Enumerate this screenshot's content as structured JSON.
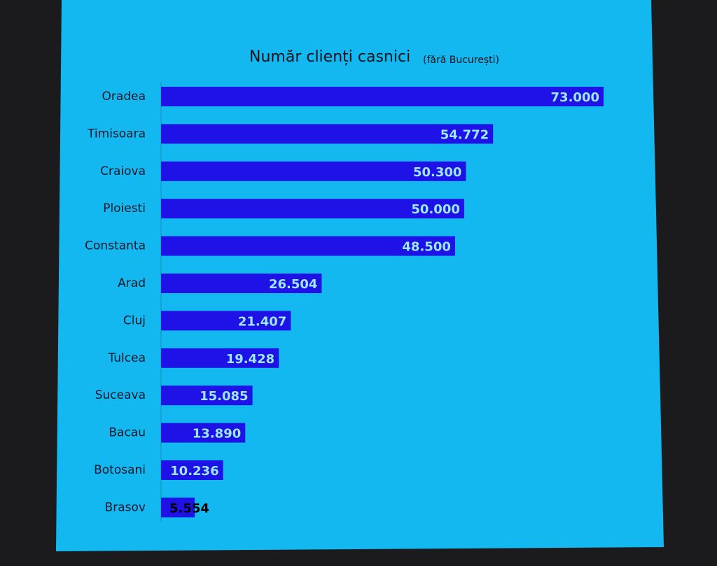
{
  "chart_data": {
    "type": "bar",
    "orientation": "horizontal",
    "title": "Număr clienți casnici",
    "subtitle": "(fără București)",
    "categories": [
      "Oradea",
      "Timisoara",
      "Craiova",
      "Ploiesti",
      "Constanta",
      "Arad",
      "Cluj",
      "Tulcea",
      "Suceava",
      "Bacau",
      "Botosani",
      "Brasov"
    ],
    "values": [
      73000,
      54772,
      50300,
      50000,
      48500,
      26504,
      21407,
      19428,
      15085,
      13890,
      10236,
      5554
    ],
    "value_labels": [
      "73.000",
      "54.772",
      "50.300",
      "50.000",
      "48.500",
      "26.504",
      "21.407",
      "19.428",
      "15.085",
      "13.890",
      "10.236",
      "5.554"
    ],
    "color": "#1f12e6"
  }
}
